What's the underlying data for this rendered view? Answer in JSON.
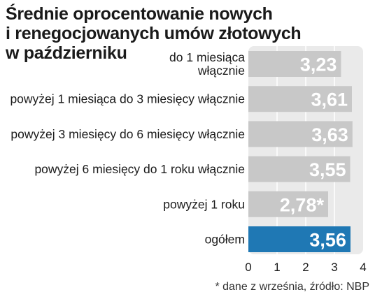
{
  "chart_data": {
    "type": "bar",
    "orientation": "horizontal",
    "title_lines": [
      "Średnie oprocentowanie nowych",
      "i renegocjowanych umów złotowych",
      "w październiku"
    ],
    "categories": [
      [
        "do 1 miesiąca",
        "włącznie"
      ],
      [
        "powyżej 1 miesiąca do 3 miesięcy włącznie"
      ],
      [
        "powyżej 3 miesięcy do 6 miesięcy włącznie"
      ],
      [
        "powyżej 6 miesięcy do 1 roku włącznie"
      ],
      [
        "powyżej 1 roku"
      ],
      [
        "ogółem"
      ]
    ],
    "values": [
      3.23,
      3.61,
      3.63,
      3.55,
      2.78,
      3.56
    ],
    "value_labels": [
      "3,23",
      "3,61",
      "3,63",
      "3,55",
      "2,78*",
      "3,56"
    ],
    "highlight_index": 5,
    "xlim": [
      0,
      4
    ],
    "x_ticks": [
      "0",
      "1",
      "2",
      "3",
      "4"
    ],
    "grid": "vertical",
    "colors": {
      "bar": "#c8c8c8",
      "highlight": "#1f78b4",
      "panel": "#eaeaea",
      "gridline": "#ffffff",
      "value_text": "#ffffff"
    },
    "footnote": "* dane z września, źródło: NBP"
  }
}
